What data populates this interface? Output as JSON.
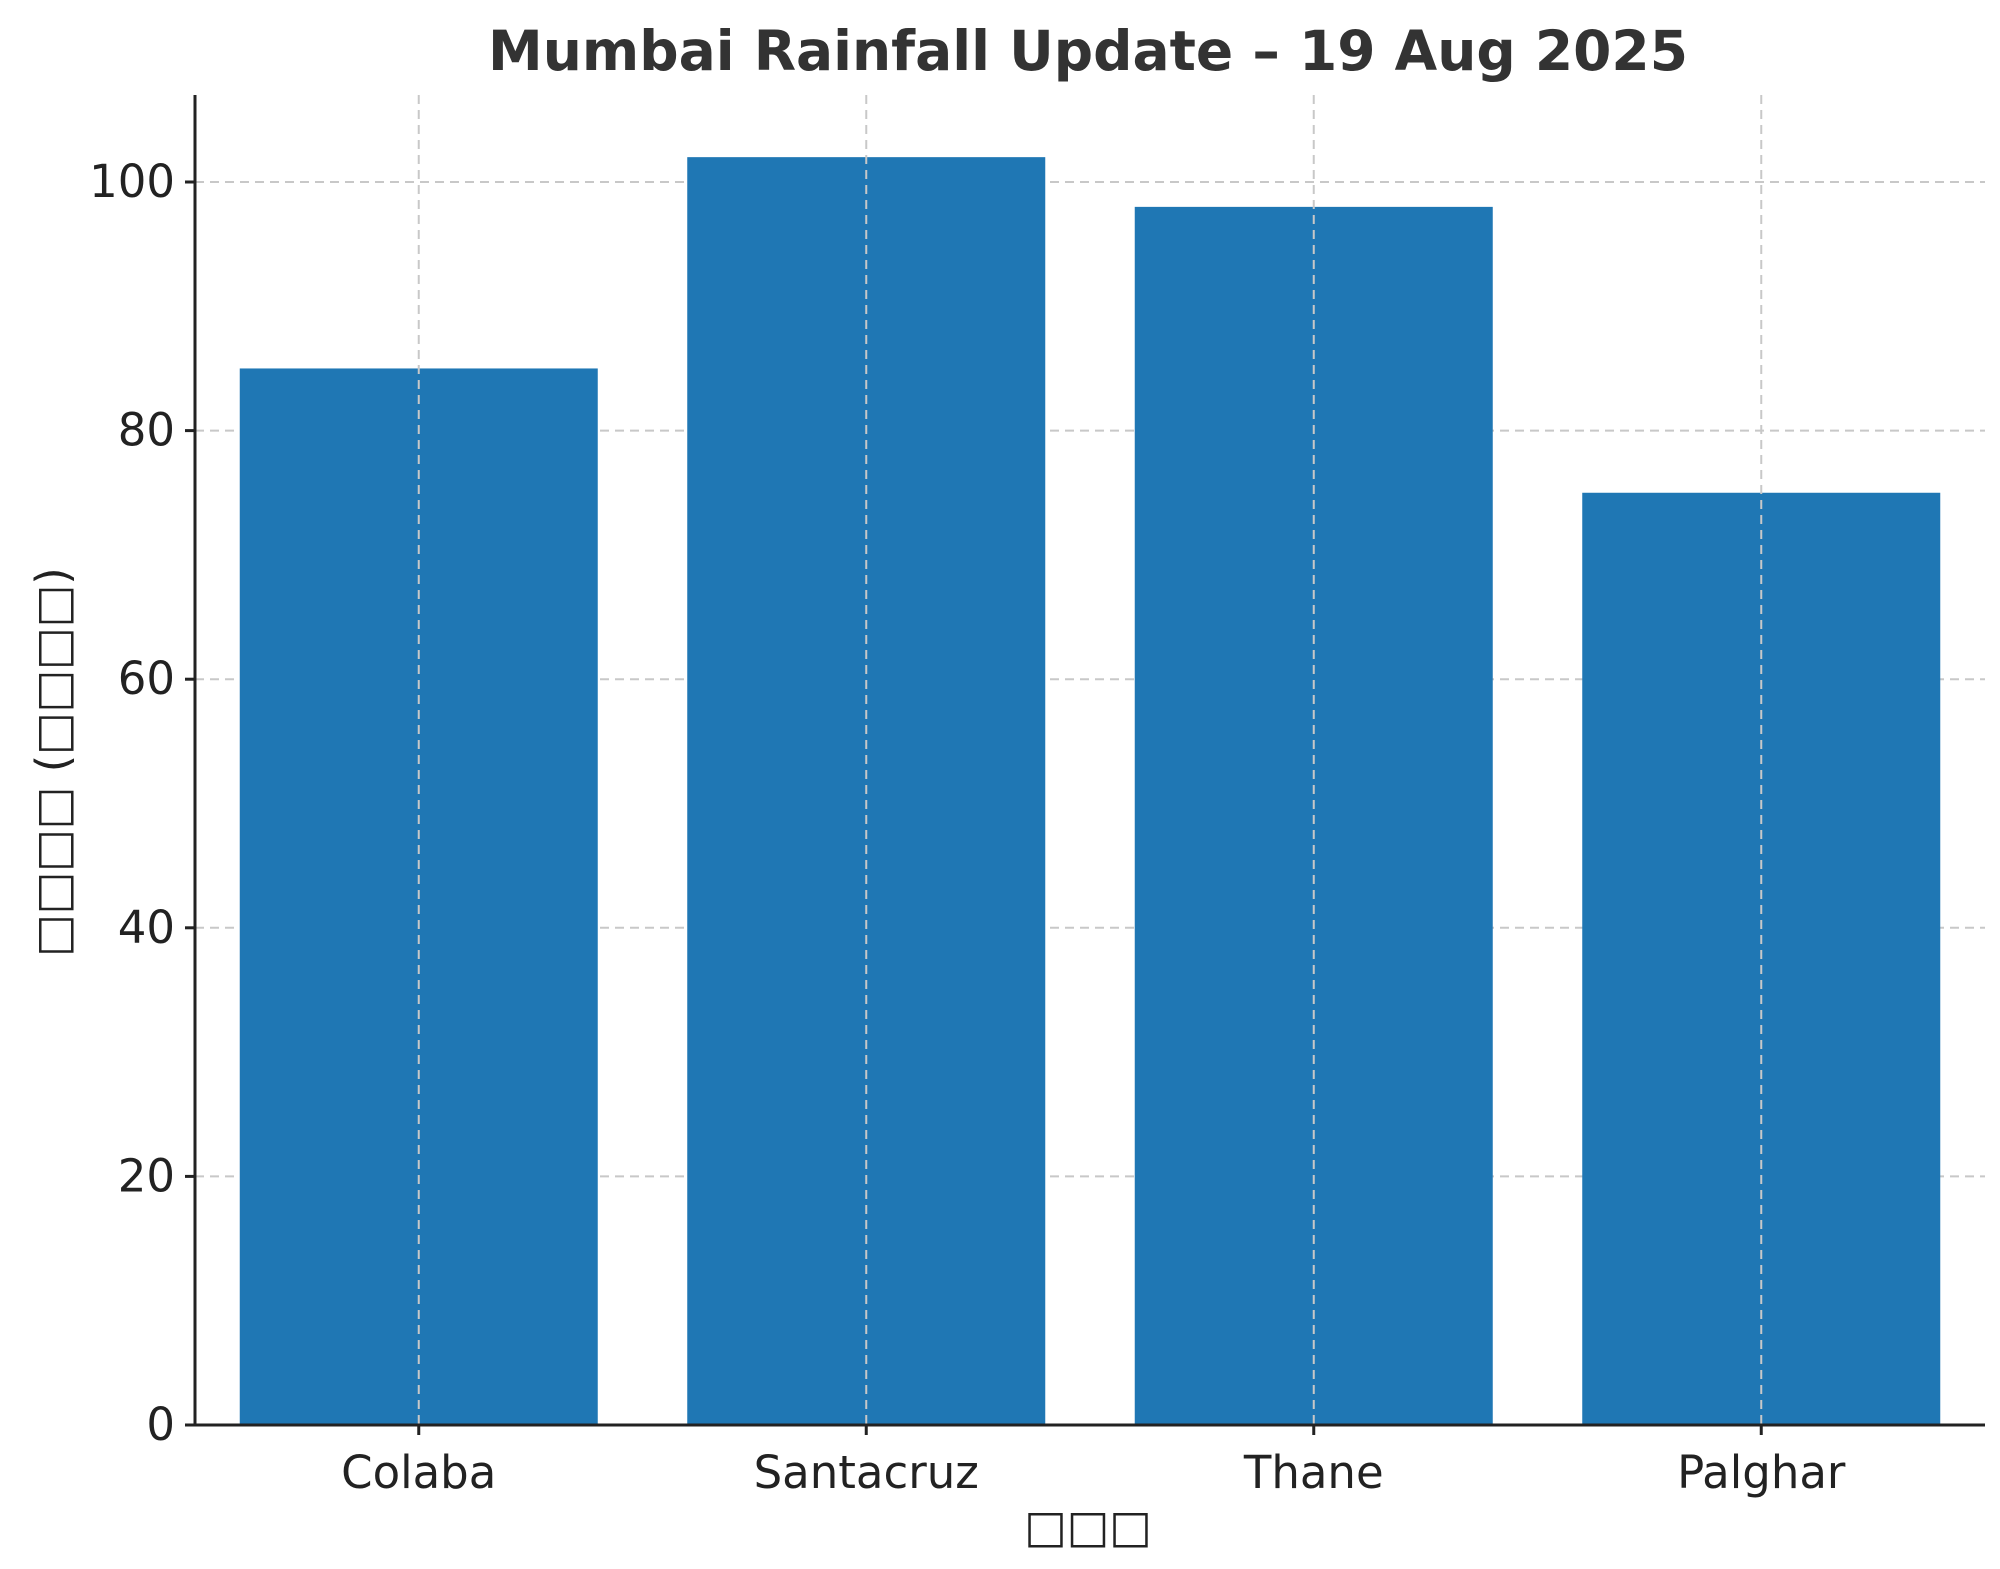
{
  "chart_data": {
    "type": "bar",
    "title": "Mumbai Rainfall Update – 19 Aug 2025",
    "xlabel": "□□□",
    "ylabel": "□□□□ (□□□□)",
    "categories": [
      "Colaba",
      "Santacruz",
      "Thane",
      "Palghar"
    ],
    "values": [
      85,
      102,
      98,
      75
    ],
    "ylim": [
      0,
      107
    ],
    "yticks": [
      0,
      20,
      40,
      60,
      80,
      100
    ],
    "grid": true,
    "bar_color": "#1f77b4"
  }
}
